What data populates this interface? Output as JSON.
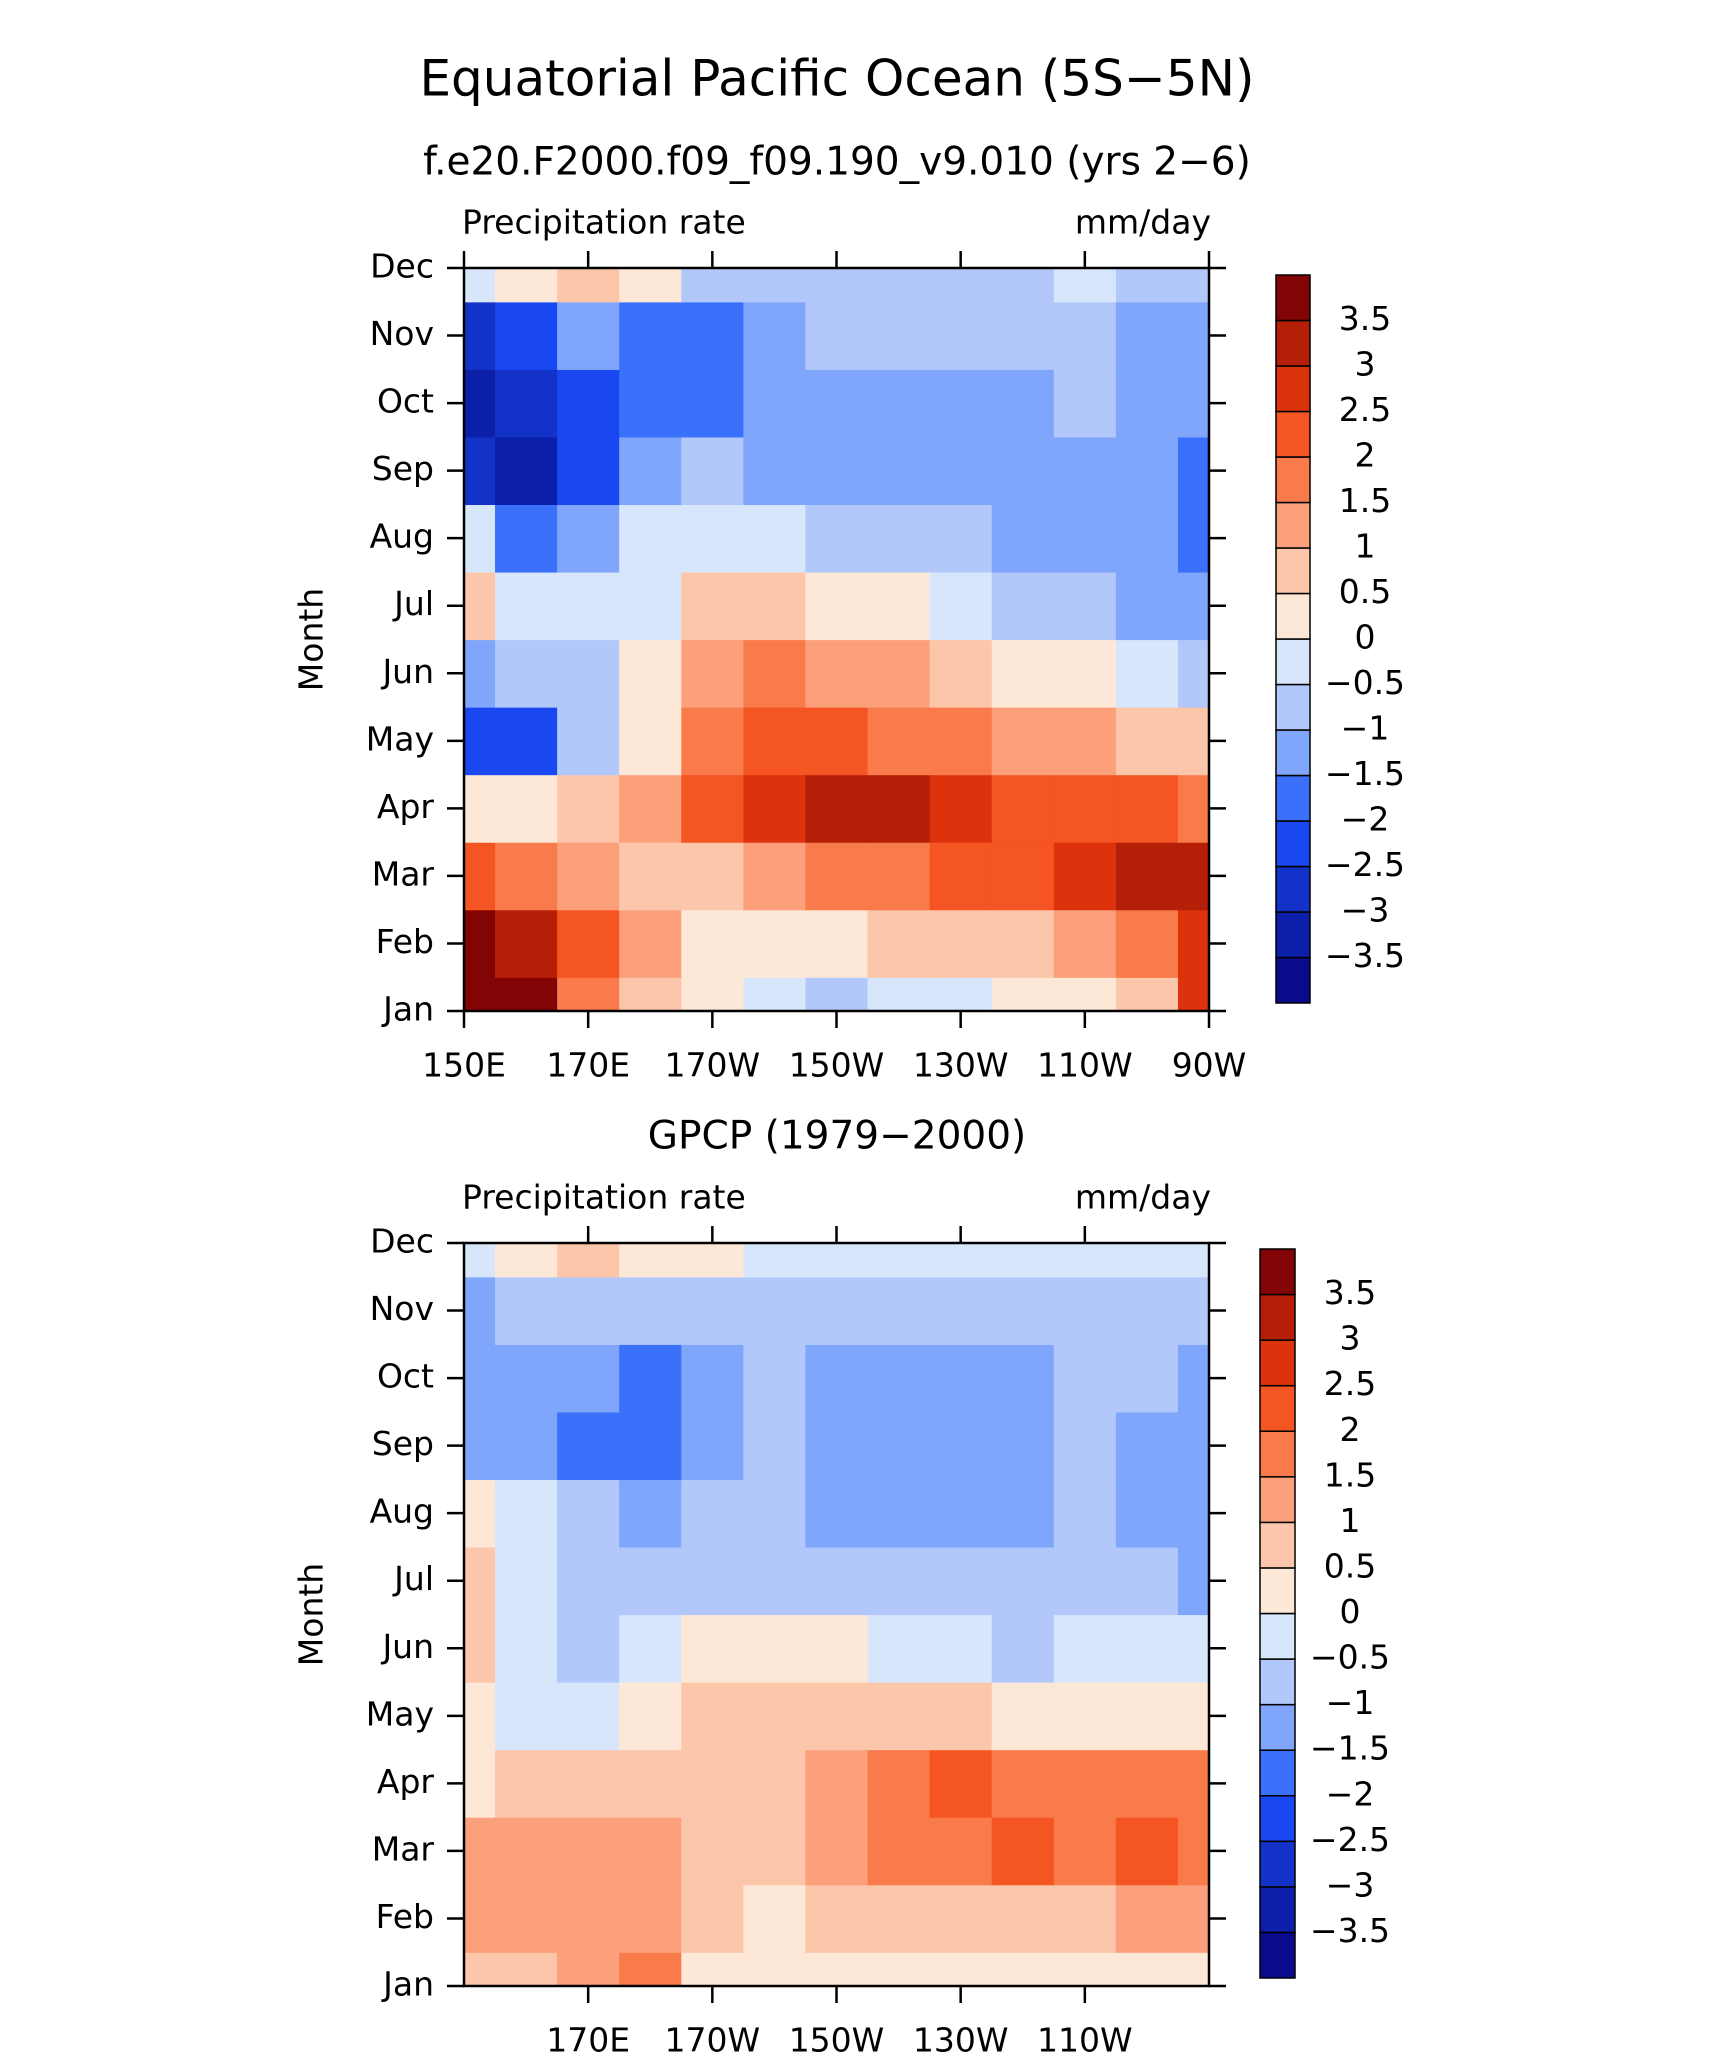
{
  "chart_data": [
    {
      "type": "contour",
      "title": "Equatorial Pacific Ocean (5S−5N)",
      "subtitle": "f.e20.F2000.f09_f09.190_v9.010 (yrs 2−6)",
      "left_label": "Precipitation rate",
      "right_label": "mm/day",
      "ylabel": "Month",
      "x": [
        150,
        160,
        170,
        180,
        190,
        200,
        210,
        220,
        230,
        240,
        250,
        260,
        270
      ],
      "categories": [
        "Jan",
        "Feb",
        "Mar",
        "Apr",
        "May",
        "Jun",
        "Jul",
        "Aug",
        "Sep",
        "Oct",
        "Nov",
        "Dec"
      ],
      "xlim": [
        150,
        270
      ],
      "xticks": [
        {
          "value": 150,
          "label": "150E"
        },
        {
          "value": 170,
          "label": "170E"
        },
        {
          "value": 190,
          "label": "170W"
        },
        {
          "value": 210,
          "label": "150W"
        },
        {
          "value": 230,
          "label": "130W"
        },
        {
          "value": 250,
          "label": "110W"
        },
        {
          "value": 270,
          "label": "90W"
        }
      ],
      "z": [
        [
          3.8,
          3.5,
          1.5,
          0.7,
          0.2,
          -0.3,
          -0.7,
          -0.3,
          -0.2,
          0,
          0.3,
          0.8,
          2.5
        ],
        [
          3.8,
          3,
          2,
          1,
          0.3,
          0.2,
          0.3,
          0.5,
          0.7,
          0.8,
          1.2,
          1.5,
          2.5
        ],
        [
          2.2,
          1.8,
          1.2,
          0.8,
          0.7,
          1.2,
          1.6,
          1.8,
          2,
          2.2,
          2.7,
          3.2,
          3.3
        ],
        [
          0.3,
          0.4,
          0.6,
          1.2,
          2.2,
          2.7,
          3.2,
          3.3,
          2.8,
          2.4,
          2.2,
          2,
          1.8
        ],
        [
          -2.5,
          -2.2,
          -1,
          0.3,
          1.5,
          2,
          2.2,
          1.9,
          1.6,
          1.3,
          1,
          0.8,
          0.6
        ],
        [
          -1.3,
          -0.8,
          -0.7,
          0.2,
          1.2,
          1.6,
          1.3,
          1,
          0.7,
          0.3,
          0.1,
          -0.3,
          -0.6
        ],
        [
          0.5,
          -0.3,
          -0.4,
          -0.1,
          0.6,
          0.7,
          0.3,
          0,
          -0.3,
          -0.6,
          -0.8,
          -1.1,
          -1.3
        ],
        [
          -0.5,
          -2,
          -1.5,
          -0.4,
          -0.1,
          -0.3,
          -0.6,
          -0.8,
          -1,
          -1.1,
          -1.3,
          -1.5,
          -1.7
        ],
        [
          -3,
          -3.2,
          -2.2,
          -1.1,
          -0.8,
          -1.2,
          -1.3,
          -1.3,
          -1.4,
          -1.4,
          -1.1,
          -1.4,
          -1.8
        ],
        [
          -3.3,
          -2.7,
          -2.2,
          -1.6,
          -1.7,
          -1.3,
          -1.2,
          -1.2,
          -1.3,
          -1.2,
          -0.9,
          -1.2,
          -1.5
        ],
        [
          -2.7,
          -2.2,
          -1.2,
          -1.7,
          -1.6,
          -1.1,
          -0.9,
          -0.8,
          -0.9,
          -0.8,
          -0.9,
          -1.1,
          -1.4
        ],
        [
          -0.2,
          0.3,
          0.6,
          0.1,
          -0.6,
          -0.9,
          -0.8,
          -0.7,
          -0.7,
          -0.6,
          -0.5,
          -0.7,
          -0.8
        ]
      ],
      "levels": [
        {
          "value": -3.5,
          "label": "−3.5"
        },
        {
          "value": -3,
          "label": "−3"
        },
        {
          "value": -2.5,
          "label": "−2.5"
        },
        {
          "value": -2,
          "label": "−2"
        },
        {
          "value": -1.5,
          "label": "−1.5"
        },
        {
          "value": -1,
          "label": "−1"
        },
        {
          "value": -0.5,
          "label": "−0.5"
        },
        0,
        0.5,
        1,
        1.5,
        2,
        2.5,
        3,
        3.5
      ],
      "colors": [
        "#0a0a8c",
        "#0c1fa8",
        "#1232c8",
        "#1a48f0",
        "#3a70fa",
        "#7fa6fa",
        "#b2c8fb",
        "#d8e6fb",
        "#fde8d8",
        "#fcc6aa",
        "#fba07a",
        "#f97a4a",
        "#f45522",
        "#dc330c",
        "#b51f08",
        "#820404"
      ]
    },
    {
      "type": "contour",
      "title": "GPCP (1979−2000)",
      "left_label": "Precipitation rate",
      "right_label": "mm/day",
      "ylabel": "Month",
      "x": [
        150,
        160,
        170,
        180,
        190,
        200,
        210,
        220,
        230,
        240,
        250,
        260,
        270
      ],
      "categories": [
        "Jan",
        "Feb",
        "Mar",
        "Apr",
        "May",
        "Jun",
        "Jul",
        "Aug",
        "Sep",
        "Oct",
        "Nov",
        "Dec"
      ],
      "xlim": [
        150,
        270
      ],
      "xticks": [
        {
          "value": 170,
          "label": "170E"
        },
        {
          "value": 190,
          "label": "170W"
        },
        {
          "value": 210,
          "label": "150W"
        },
        {
          "value": 230,
          "label": "130W"
        },
        {
          "value": 250,
          "label": "110W"
        }
      ],
      "z": [
        [
          0.6,
          0.9,
          1.2,
          1.7,
          0.3,
          0.2,
          0.2,
          0.2,
          0.1,
          0.2,
          0.2,
          0.2,
          0.3
        ],
        [
          1.3,
          1.2,
          1.1,
          1.3,
          0.6,
          0.4,
          0.6,
          0.8,
          0.8,
          0.8,
          0.9,
          1.1,
          1.2
        ],
        [
          1.3,
          1.1,
          1.3,
          1.1,
          0.7,
          0.6,
          1.2,
          1.6,
          1.8,
          2.1,
          1.6,
          2.1,
          1.8
        ],
        [
          0.4,
          0.6,
          0.9,
          0.7,
          0.7,
          0.9,
          1.3,
          1.6,
          2,
          1.8,
          1.6,
          1.7,
          1.5
        ],
        [
          0.3,
          -0.3,
          -0.4,
          0.2,
          0.5,
          0.7,
          0.8,
          0.6,
          0.5,
          0.4,
          0.3,
          0.2,
          0.1
        ],
        [
          0.6,
          -0.3,
          -0.6,
          -0.3,
          0.2,
          0.2,
          0.1,
          -0.2,
          -0.4,
          -0.6,
          -0.3,
          -0.2,
          -0.2
        ],
        [
          0.5,
          -0.4,
          -0.6,
          -0.7,
          -0.7,
          -0.7,
          -0.6,
          -0.7,
          -0.7,
          -0.8,
          -0.8,
          -1,
          -1.2
        ],
        [
          0.3,
          -0.5,
          -0.8,
          -1.1,
          -0.9,
          -1,
          -1.3,
          -1.4,
          -1.4,
          -1.3,
          -0.9,
          -1.2,
          -1.3
        ],
        [
          -1.2,
          -1.3,
          -1.6,
          -1.7,
          -1.2,
          -0.9,
          -1.2,
          -1.3,
          -1.4,
          -1.3,
          -0.9,
          -1.1,
          -1.3
        ],
        [
          -1.2,
          -1.1,
          -1.5,
          -1.7,
          -1.3,
          -1,
          -1.1,
          -1.2,
          -1.2,
          -1.1,
          -0.8,
          -1,
          -1.2
        ],
        [
          -1.1,
          -0.8,
          -0.9,
          -0.8,
          -0.9,
          -0.8,
          -0.7,
          -0.6,
          -0.6,
          -0.6,
          -0.6,
          -0.7,
          -0.8
        ],
        [
          -0.2,
          0.4,
          0.8,
          0.4,
          0.2,
          -0.3,
          -0.4,
          -0.4,
          -0.4,
          -0.4,
          -0.4,
          -0.5,
          -0.5
        ]
      ],
      "levels": [
        {
          "value": -3.5,
          "label": "−3.5"
        },
        {
          "value": -3,
          "label": "−3"
        },
        {
          "value": -2.5,
          "label": "−2.5"
        },
        {
          "value": -2,
          "label": "−2"
        },
        {
          "value": -1.5,
          "label": "−1.5"
        },
        {
          "value": -1,
          "label": "−1"
        },
        {
          "value": -0.5,
          "label": "−0.5"
        },
        0,
        0.5,
        1,
        1.5,
        2,
        2.5,
        3,
        3.5
      ],
      "colors": [
        "#0a0a8c",
        "#0c1fa8",
        "#1232c8",
        "#1a48f0",
        "#3a70fa",
        "#7fa6fa",
        "#b2c8fb",
        "#d8e6fb",
        "#fde8d8",
        "#fcc6aa",
        "#fba07a",
        "#f97a4a",
        "#f45522",
        "#dc330c",
        "#b51f08",
        "#820404"
      ]
    }
  ]
}
